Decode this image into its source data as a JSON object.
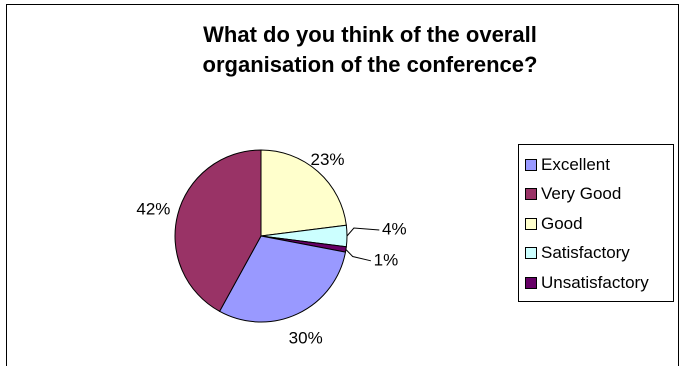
{
  "chart_data": {
    "type": "pie",
    "title": "What do you think of the overall organisation of the conference?",
    "title_lines": [
      "What do you think of the overall",
      "organisation of the conference?"
    ],
    "series": [
      {
        "name": "Excellent",
        "value": 30,
        "label": "30%",
        "color": "#9999ff"
      },
      {
        "name": "Very Good",
        "value": 42,
        "label": "42%",
        "color": "#993366"
      },
      {
        "name": "Good",
        "value": 23,
        "label": "23%",
        "color": "#ffffcc"
      },
      {
        "name": "Satisfactory",
        "value": 4,
        "label": "4%",
        "color": "#ccffff"
      },
      {
        "name": "Unsatisfactory",
        "value": 1,
        "label": "1%",
        "color": "#660066"
      }
    ],
    "legend_position": "right"
  }
}
